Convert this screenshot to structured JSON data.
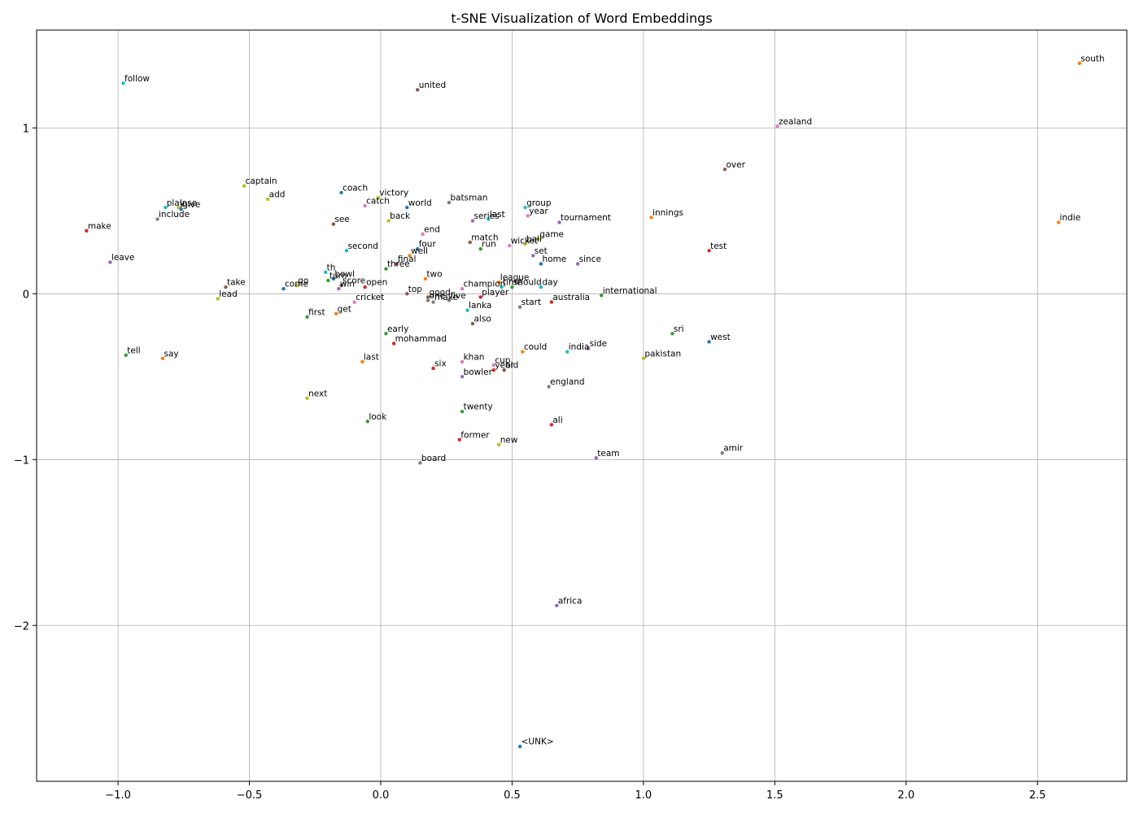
{
  "chart_data": {
    "type": "scatter",
    "title": "t-SNE Visualization of Word Embeddings",
    "xlabel": "",
    "ylabel": "",
    "xlim": [
      -1.31,
      2.84
    ],
    "ylim": [
      -2.94,
      1.59
    ],
    "xticks": [
      {
        "value": -1.0,
        "label": "−1.0"
      },
      {
        "value": -0.5,
        "label": "−0.5"
      },
      {
        "value": 0.0,
        "label": "0.0"
      },
      {
        "value": 0.5,
        "label": "0.5"
      },
      {
        "value": 1.0,
        "label": "1.0"
      },
      {
        "value": 1.5,
        "label": "1.5"
      },
      {
        "value": 2.0,
        "label": "2.0"
      },
      {
        "value": 2.5,
        "label": "2.5"
      }
    ],
    "yticks": [
      {
        "value": 1,
        "label": "1"
      },
      {
        "value": 0,
        "label": "0"
      },
      {
        "value": -1,
        "label": "−1"
      },
      {
        "value": -2,
        "label": "−2"
      }
    ],
    "grid": true,
    "points": [
      {
        "word": "south",
        "x": 2.66,
        "y": 1.39,
        "color": "#ff7f0e"
      },
      {
        "word": "follow",
        "x": -0.98,
        "y": 1.27,
        "color": "#17becf"
      },
      {
        "word": "united",
        "x": 0.14,
        "y": 1.23,
        "color": "#8c564b"
      },
      {
        "word": "zealand",
        "x": 1.51,
        "y": 1.01,
        "color": "#e377c2"
      },
      {
        "word": "over",
        "x": 1.31,
        "y": 0.75,
        "color": "#8c564b"
      },
      {
        "word": "captain",
        "x": -0.52,
        "y": 0.65,
        "color": "#bcbd22"
      },
      {
        "word": "coach",
        "x": -0.15,
        "y": 0.61,
        "color": "#1f77b4"
      },
      {
        "word": "victory",
        "x": -0.01,
        "y": 0.58,
        "color": "#bcbd22"
      },
      {
        "word": "add",
        "x": -0.43,
        "y": 0.57,
        "color": "#bcbd22"
      },
      {
        "word": "catch",
        "x": -0.06,
        "y": 0.53,
        "color": "#e377c2"
      },
      {
        "word": "world",
        "x": 0.1,
        "y": 0.52,
        "color": "#1f77b4"
      },
      {
        "word": "batsman",
        "x": 0.26,
        "y": 0.55,
        "color": "#7f7f7f"
      },
      {
        "word": "group",
        "x": 0.55,
        "y": 0.52,
        "color": "#17becf"
      },
      {
        "word": "play",
        "x": -0.82,
        "y": 0.52,
        "color": "#17becf"
      },
      {
        "word": "lose",
        "x": -0.77,
        "y": 0.52,
        "color": "#bcbd22"
      },
      {
        "word": "give",
        "x": -0.76,
        "y": 0.51,
        "color": "#1f77b4"
      },
      {
        "word": "year",
        "x": 0.56,
        "y": 0.47,
        "color": "#e377c2"
      },
      {
        "word": "innings",
        "x": 1.03,
        "y": 0.46,
        "color": "#ff7f0e"
      },
      {
        "word": "include",
        "x": -0.85,
        "y": 0.45,
        "color": "#7f7f7f"
      },
      {
        "word": "back",
        "x": 0.03,
        "y": 0.44,
        "color": "#bcbd22"
      },
      {
        "word": "series",
        "x": 0.35,
        "y": 0.44,
        "color": "#9467bd"
      },
      {
        "word": "last",
        "x": 0.41,
        "y": 0.45,
        "color": "#17becf"
      },
      {
        "word": "tournament",
        "x": 0.68,
        "y": 0.43,
        "color": "#9467bd"
      },
      {
        "word": "indie",
        "x": 2.58,
        "y": 0.43,
        "color": "#ff7f0e"
      },
      {
        "word": "see",
        "x": -0.18,
        "y": 0.42,
        "color": "#8c564b"
      },
      {
        "word": "make",
        "x": -1.12,
        "y": 0.38,
        "color": "#d62728"
      },
      {
        "word": "end",
        "x": 0.16,
        "y": 0.36,
        "color": "#e377c2"
      },
      {
        "word": "game",
        "x": 0.6,
        "y": 0.33,
        "color": "#bcbd22"
      },
      {
        "word": "match",
        "x": 0.34,
        "y": 0.31,
        "color": "#8c564b"
      },
      {
        "word": "ball",
        "x": 0.55,
        "y": 0.3,
        "color": "#bcbd22"
      },
      {
        "word": "wicket",
        "x": 0.49,
        "y": 0.29,
        "color": "#e377c2"
      },
      {
        "word": "four",
        "x": 0.14,
        "y": 0.27,
        "color": "#1f77b4"
      },
      {
        "word": "run",
        "x": 0.38,
        "y": 0.27,
        "color": "#2ca02c"
      },
      {
        "word": "second",
        "x": -0.13,
        "y": 0.26,
        "color": "#17becf"
      },
      {
        "word": "test",
        "x": 1.25,
        "y": 0.26,
        "color": "#d62728"
      },
      {
        "word": "well",
        "x": 0.11,
        "y": 0.23,
        "color": "#ff7f0e"
      },
      {
        "word": "set",
        "x": 0.58,
        "y": 0.23,
        "color": "#9467bd"
      },
      {
        "word": "leave",
        "x": -1.03,
        "y": 0.19,
        "color": "#9467bd"
      },
      {
        "word": "final",
        "x": 0.06,
        "y": 0.18,
        "color": "#8c564b"
      },
      {
        "word": "home",
        "x": 0.61,
        "y": 0.18,
        "color": "#1f77b4"
      },
      {
        "word": "since",
        "x": 0.75,
        "y": 0.18,
        "color": "#9467bd"
      },
      {
        "word": "three",
        "x": 0.02,
        "y": 0.15,
        "color": "#2ca02c"
      },
      {
        "word": "th",
        "x": -0.21,
        "y": 0.13,
        "color": "#17becf"
      },
      {
        "word": "two",
        "x": 0.17,
        "y": 0.09,
        "color": "#ff7f0e"
      },
      {
        "word": "bowl",
        "x": -0.18,
        "y": 0.09,
        "color": "#1f77b4"
      },
      {
        "word": "turn",
        "x": -0.2,
        "y": 0.08,
        "color": "#2ca02c"
      },
      {
        "word": "league",
        "x": 0.45,
        "y": 0.07,
        "color": "#ff7f0e"
      },
      {
        "word": "go",
        "x": -0.32,
        "y": 0.05,
        "color": "#bcbd22"
      },
      {
        "word": "score",
        "x": -0.15,
        "y": 0.05,
        "color": "#8c564b"
      },
      {
        "word": "open",
        "x": -0.06,
        "y": 0.04,
        "color": "#d62728"
      },
      {
        "word": "take",
        "x": -0.59,
        "y": 0.04,
        "color": "#8c564b"
      },
      {
        "word": "time",
        "x": 0.46,
        "y": 0.04,
        "color": "#17becf"
      },
      {
        "word": "should",
        "x": 0.5,
        "y": 0.04,
        "color": "#2ca02c"
      },
      {
        "word": "day",
        "x": 0.61,
        "y": 0.04,
        "color": "#17becf"
      },
      {
        "word": "win",
        "x": -0.16,
        "y": 0.03,
        "color": "#9467bd"
      },
      {
        "word": "come",
        "x": -0.37,
        "y": 0.03,
        "color": "#1f77b4"
      },
      {
        "word": "champion",
        "x": 0.31,
        "y": 0.03,
        "color": "#e377c2"
      },
      {
        "word": "top",
        "x": 0.1,
        "y": 0.0,
        "color": "#8c564b"
      },
      {
        "word": "international",
        "x": 0.84,
        "y": -0.01,
        "color": "#2ca02c"
      },
      {
        "word": "good",
        "x": 0.18,
        "y": -0.02,
        "color": "#8c564b"
      },
      {
        "word": "player",
        "x": 0.38,
        "y": -0.02,
        "color": "#d62728"
      },
      {
        "word": "lead",
        "x": -0.62,
        "y": -0.03,
        "color": "#bcbd22"
      },
      {
        "word": "one",
        "x": 0.18,
        "y": -0.04,
        "color": "#7f7f7f"
      },
      {
        "word": "five",
        "x": 0.26,
        "y": -0.04,
        "color": "#7f7f7f"
      },
      {
        "word": "make",
        "x": 0.2,
        "y": -0.05,
        "color": "#7f7f7f"
      },
      {
        "word": "cricket",
        "x": -0.1,
        "y": -0.05,
        "color": "#e377c2"
      },
      {
        "word": "australia",
        "x": 0.65,
        "y": -0.05,
        "color": "#d62728"
      },
      {
        "word": "start",
        "x": 0.53,
        "y": -0.08,
        "color": "#7f7f7f"
      },
      {
        "word": "lanka",
        "x": 0.33,
        "y": -0.1,
        "color": "#17becf"
      },
      {
        "word": "get",
        "x": -0.17,
        "y": -0.12,
        "color": "#ff7f0e"
      },
      {
        "word": "first",
        "x": -0.28,
        "y": -0.14,
        "color": "#2ca02c"
      },
      {
        "word": "also",
        "x": 0.35,
        "y": -0.18,
        "color": "#8c564b"
      },
      {
        "word": "early",
        "x": 0.02,
        "y": -0.24,
        "color": "#2ca02c"
      },
      {
        "word": "sri",
        "x": 1.11,
        "y": -0.24,
        "color": "#2ca02c"
      },
      {
        "word": "west",
        "x": 1.25,
        "y": -0.29,
        "color": "#1f77b4"
      },
      {
        "word": "mohammad",
        "x": 0.05,
        "y": -0.3,
        "color": "#d62728"
      },
      {
        "word": "side",
        "x": 0.79,
        "y": -0.33,
        "color": "#9467bd"
      },
      {
        "word": "india",
        "x": 0.71,
        "y": -0.35,
        "color": "#17becf"
      },
      {
        "word": "could",
        "x": 0.54,
        "y": -0.35,
        "color": "#ff7f0e"
      },
      {
        "word": "tell",
        "x": -0.97,
        "y": -0.37,
        "color": "#2ca02c"
      },
      {
        "word": "say",
        "x": -0.83,
        "y": -0.39,
        "color": "#ff7f0e"
      },
      {
        "word": "pakistan",
        "x": 1.0,
        "y": -0.39,
        "color": "#bcbd22"
      },
      {
        "word": "last",
        "x": -0.07,
        "y": -0.41,
        "color": "#ff7f0e"
      },
      {
        "word": "khan",
        "x": 0.31,
        "y": -0.41,
        "color": "#e377c2"
      },
      {
        "word": "cup",
        "x": 0.43,
        "y": -0.43,
        "color": "#e377c2"
      },
      {
        "word": "six",
        "x": 0.2,
        "y": -0.45,
        "color": "#d62728"
      },
      {
        "word": "year",
        "x": 0.43,
        "y": -0.46,
        "color": "#d62728"
      },
      {
        "word": "old",
        "x": 0.47,
        "y": -0.46,
        "color": "#8c564b"
      },
      {
        "word": "bowler",
        "x": 0.31,
        "y": -0.5,
        "color": "#9467bd"
      },
      {
        "word": "england",
        "x": 0.64,
        "y": -0.56,
        "color": "#7f7f7f"
      },
      {
        "word": "next",
        "x": -0.28,
        "y": -0.63,
        "color": "#bcbd22"
      },
      {
        "word": "twenty",
        "x": 0.31,
        "y": -0.71,
        "color": "#2ca02c"
      },
      {
        "word": "look",
        "x": -0.05,
        "y": -0.77,
        "color": "#2ca02c"
      },
      {
        "word": "ali",
        "x": 0.65,
        "y": -0.79,
        "color": "#d62728"
      },
      {
        "word": "former",
        "x": 0.3,
        "y": -0.88,
        "color": "#d62728"
      },
      {
        "word": "new",
        "x": 0.45,
        "y": -0.91,
        "color": "#bcbd22"
      },
      {
        "word": "amir",
        "x": 1.3,
        "y": -0.96,
        "color": "#7f7f7f"
      },
      {
        "word": "team",
        "x": 0.82,
        "y": -0.99,
        "color": "#9467bd"
      },
      {
        "word": "board",
        "x": 0.15,
        "y": -1.02,
        "color": "#7f7f7f"
      },
      {
        "word": "africa",
        "x": 0.67,
        "y": -1.88,
        "color": "#9467bd"
      },
      {
        "word": "<UNK>",
        "x": 0.53,
        "y": -2.73,
        "color": "#1f77b4"
      }
    ]
  }
}
